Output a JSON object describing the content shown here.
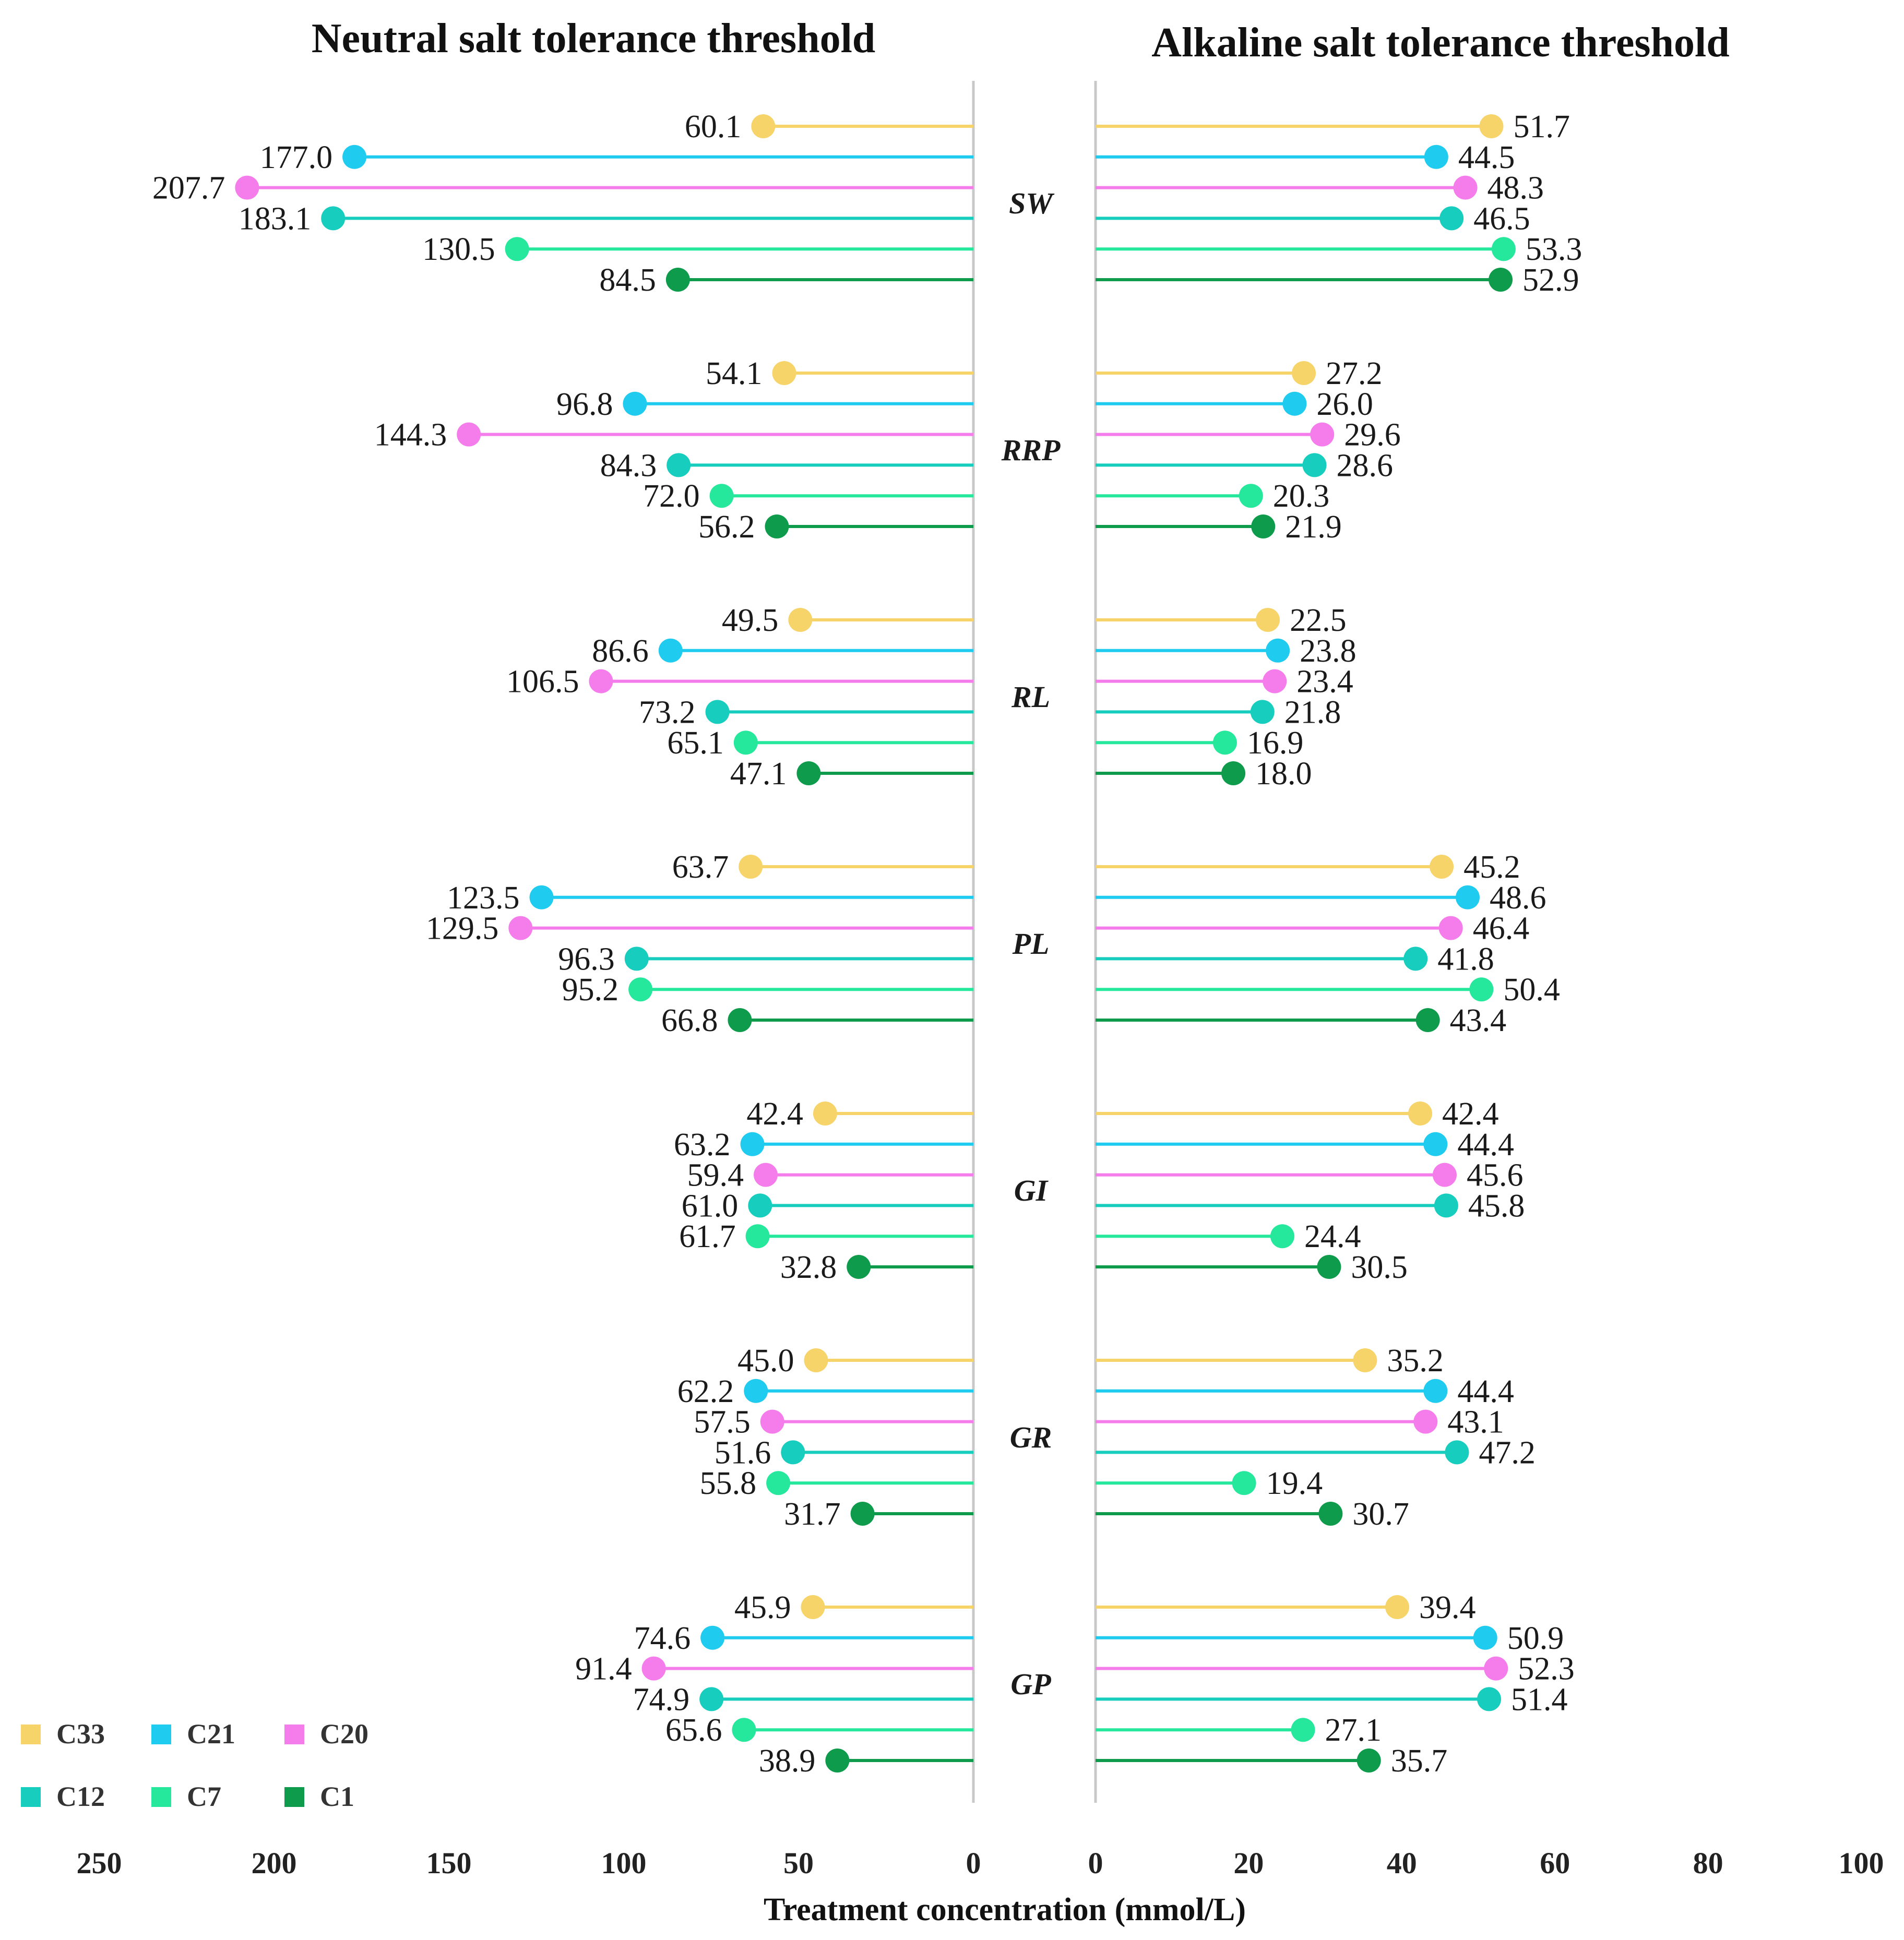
{
  "chart_data": {
    "type": "lollipop",
    "panels": [
      {
        "title": "Neutral salt tolerance threshold",
        "direction": "reversed",
        "xlim": [
          0,
          250
        ],
        "ticks": [
          "250",
          "200",
          "150",
          "100",
          "50",
          "0"
        ],
        "tick_values": [
          250,
          200,
          150,
          100,
          50,
          0
        ],
        "values": {
          "SW": [
            60.1,
            177.0,
            207.7,
            183.1,
            130.5,
            84.5
          ],
          "RRP": [
            54.1,
            96.8,
            144.3,
            84.3,
            72.0,
            56.2
          ],
          "RL": [
            49.5,
            86.6,
            106.5,
            73.2,
            65.1,
            47.1
          ],
          "PL": [
            63.7,
            123.5,
            129.5,
            96.3,
            95.2,
            66.8
          ],
          "GI": [
            42.4,
            63.2,
            59.4,
            61.0,
            61.7,
            32.8
          ],
          "GR": [
            45.0,
            62.2,
            57.5,
            51.6,
            55.8,
            31.7
          ],
          "GP": [
            45.9,
            74.6,
            91.4,
            74.9,
            65.6,
            38.9
          ]
        },
        "labels": {
          "SW": [
            "60.1",
            "177.0",
            "207.7",
            "183.1",
            "130.5",
            "84.5"
          ],
          "RRP": [
            "54.1",
            "96.8",
            "144.3",
            "84.3",
            "72.0",
            "56.2"
          ],
          "RL": [
            "49.5",
            "86.6",
            "106.5",
            "73.2",
            "65.1",
            "47.1"
          ],
          "PL": [
            "63.7",
            "123.5",
            "129.5",
            "96.3",
            "95.2",
            "66.8"
          ],
          "GI": [
            "42.4",
            "63.2",
            "59.4",
            "61.0",
            "61.7",
            "32.8"
          ],
          "GR": [
            "45.0",
            "62.2",
            "57.5",
            "51.6",
            "55.8",
            "31.7"
          ],
          "GP": [
            "45.9",
            "74.6",
            "91.4",
            "74.9",
            "65.6",
            "38.9"
          ]
        }
      },
      {
        "title": "Alkaline salt tolerance threshold",
        "direction": "normal",
        "xlim": [
          0,
          100
        ],
        "ticks": [
          "0",
          "20",
          "40",
          "60",
          "80",
          "100"
        ],
        "tick_values": [
          0,
          20,
          40,
          60,
          80,
          100
        ],
        "values": {
          "SW": [
            51.7,
            44.5,
            48.3,
            46.5,
            53.3,
            52.9
          ],
          "RRP": [
            27.2,
            26.0,
            29.6,
            28.6,
            20.3,
            21.9
          ],
          "RL": [
            22.5,
            23.8,
            23.4,
            21.8,
            16.9,
            18.0
          ],
          "PL": [
            45.2,
            48.6,
            46.4,
            41.8,
            50.4,
            43.4
          ],
          "GI": [
            42.4,
            44.4,
            45.6,
            45.8,
            24.4,
            30.5
          ],
          "GR": [
            35.2,
            44.4,
            43.1,
            47.2,
            19.4,
            30.7
          ],
          "GP": [
            39.4,
            50.9,
            52.3,
            51.4,
            27.1,
            35.7
          ]
        },
        "labels": {
          "SW": [
            "51.7",
            "44.5",
            "48.3",
            "46.5",
            "53.3",
            "52.9"
          ],
          "RRP": [
            "27.2",
            "26.0",
            "29.6",
            "28.6",
            "20.3",
            "21.9"
          ],
          "RL": [
            "22.5",
            "23.8",
            "23.4",
            "21.8",
            "16.9",
            "18.0"
          ],
          "PL": [
            "45.2",
            "48.6",
            "46.4",
            "41.8",
            "50.4",
            "43.4"
          ],
          "GI": [
            "42.4",
            "44.4",
            "45.6",
            "45.8",
            "24.4",
            "30.5"
          ],
          "GR": [
            "35.2",
            "44.4",
            "43.1",
            "47.2",
            "19.4",
            "30.7"
          ],
          "GP": [
            "39.4",
            "50.9",
            "52.3",
            "51.4",
            "27.1",
            "35.7"
          ]
        }
      }
    ],
    "traits": [
      "SW",
      "RRP",
      "RL",
      "PL",
      "GI",
      "GR",
      "GP"
    ],
    "series": [
      {
        "name": "C33",
        "color": "#F7D46A"
      },
      {
        "name": "C21",
        "color": "#1FCBEF"
      },
      {
        "name": "C20",
        "color": "#F57CEB"
      },
      {
        "name": "C12",
        "color": "#17CDBE"
      },
      {
        "name": "C7",
        "color": "#26E89C"
      },
      {
        "name": "C1",
        "color": "#0F9B4C"
      }
    ],
    "xlabel": "Treatment concentration (mmol/L)",
    "legend_position": "bottom-left"
  }
}
